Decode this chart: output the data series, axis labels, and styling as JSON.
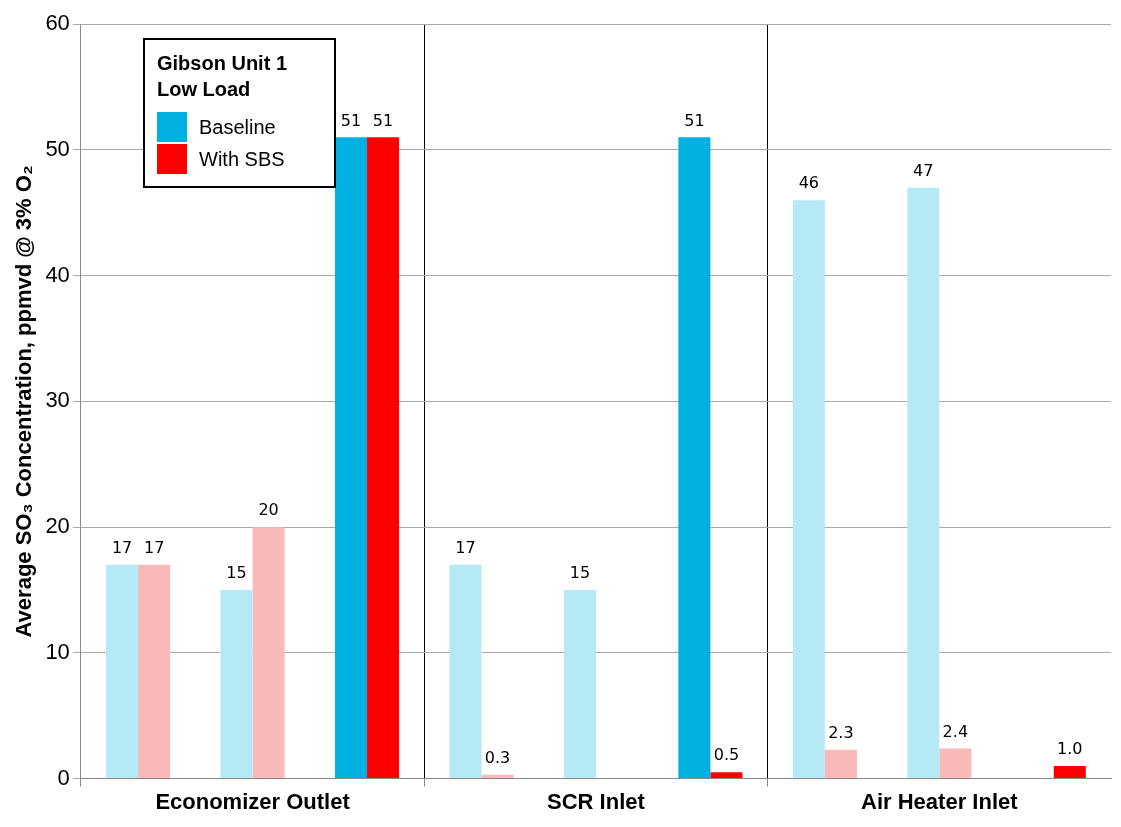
{
  "chart_data": {
    "type": "bar",
    "ylabel": "Average SO₃ Concentration, ppmvd @ 3% O₂",
    "legend_title": "Gibson Unit 1 Low Load",
    "categories": [
      null,
      "Economizer Outlet",
      null,
      null,
      "SCR Inlet",
      null,
      null,
      "Air Heater Inlet",
      null
    ],
    "series": [
      {
        "name": "Baseline",
        "color": "#00b0e0",
        "colors": [
          "#b5e9f6",
          "#b5e9f6",
          "#00b0e0",
          "#b5e9f6",
          "#b5e9f6",
          "#00b0e0",
          "#b5e9f6",
          "#b5e9f6",
          "#00b0e0"
        ],
        "values": [
          17,
          15,
          51,
          17,
          15,
          51,
          46,
          47,
          null
        ],
        "value_labels": [
          "17",
          "15",
          "51",
          "17",
          "15",
          "51",
          "46",
          "47",
          null
        ]
      },
      {
        "name": "With SBS",
        "color": "#ff0000",
        "colors": [
          "#f9b9b9",
          "#f9b9b9",
          "#ff0000",
          "#f9b9b9",
          "#f9b9b9",
          "#ff0000",
          "#f9b9b9",
          "#f9b9b9",
          "#ff0000"
        ],
        "values": [
          17,
          20,
          51,
          0.3,
          null,
          0.5,
          2.3,
          2.4,
          1.0
        ],
        "value_labels": [
          "17",
          "20",
          "51",
          "0.3",
          null,
          "0.5",
          "2.3",
          "2.4",
          "1.0"
        ]
      }
    ],
    "ylim": [
      0,
      60
    ],
    "yticks": [
      0,
      10,
      20,
      30,
      40,
      50,
      60
    ],
    "grid": "y",
    "legend": "top left"
  }
}
